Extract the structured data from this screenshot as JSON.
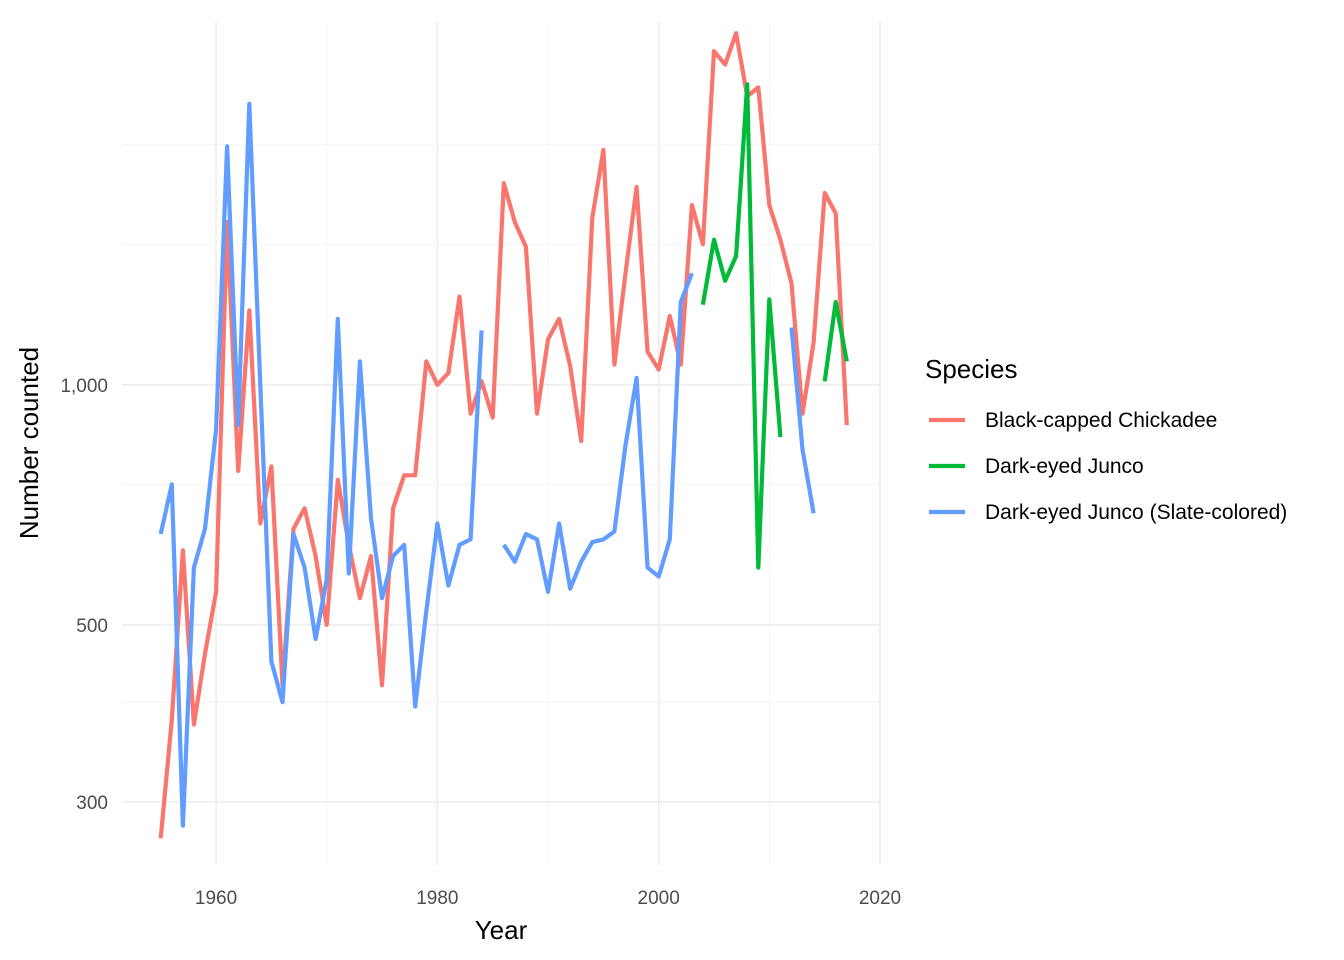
{
  "chart_data": {
    "type": "line",
    "xlabel": "Year",
    "ylabel": "Number counted",
    "xlim": [
      1951.5,
      2020
    ],
    "ylim": [
      250,
      2850
    ],
    "y_scale": "log",
    "x_ticks": [
      1960,
      1980,
      2000,
      2020
    ],
    "x_tick_labels": [
      "1960",
      "1980",
      "2000",
      "2020"
    ],
    "y_ticks": [
      300,
      500,
      1000
    ],
    "y_tick_labels": [
      "300",
      "500",
      "1,000"
    ],
    "y_minor": [
      400,
      750,
      1500,
      2000
    ],
    "grid": true,
    "legend": {
      "title": "Species",
      "position": "right"
    },
    "series": [
      {
        "name": "Black-capped Chickadee",
        "color": "#F8766D",
        "points": [
          [
            1955,
            270
          ],
          [
            1956,
            380
          ],
          [
            1957,
            620
          ],
          [
            1958,
            375
          ],
          [
            1959,
            460
          ],
          [
            1960,
            550
          ],
          [
            1961,
            1600
          ],
          [
            1962,
            780
          ],
          [
            1963,
            1240
          ],
          [
            1964,
            670
          ],
          [
            1965,
            790
          ],
          [
            1966,
            420
          ],
          [
            1967,
            660
          ],
          [
            1968,
            700
          ],
          [
            1969,
            610
          ],
          [
            1970,
            500
          ],
          [
            1971,
            760
          ],
          [
            1972,
            630
          ],
          [
            1973,
            540
          ],
          [
            1974,
            610
          ],
          [
            1975,
            420
          ],
          [
            1976,
            700
          ],
          [
            1977,
            770
          ],
          [
            1978,
            770
          ],
          [
            1979,
            1070
          ],
          [
            1980,
            1000
          ],
          [
            1981,
            1035
          ],
          [
            1982,
            1290
          ],
          [
            1983,
            920
          ],
          [
            1984,
            1010
          ],
          [
            1985,
            910
          ],
          [
            1986,
            1790
          ],
          [
            1987,
            1600
          ],
          [
            1988,
            1490
          ],
          [
            1989,
            920
          ],
          [
            1990,
            1140
          ],
          [
            1991,
            1210
          ],
          [
            1992,
            1055
          ],
          [
            1993,
            850
          ],
          [
            1994,
            1620
          ],
          [
            1995,
            1970
          ],
          [
            1996,
            1060
          ],
          [
            1997,
            1380
          ],
          [
            1998,
            1770
          ],
          [
            1999,
            1100
          ],
          [
            2000,
            1045
          ],
          [
            2001,
            1220
          ],
          [
            2002,
            1060
          ],
          [
            2003,
            1680
          ],
          [
            2004,
            1500
          ],
          [
            2005,
            2620
          ],
          [
            2006,
            2520
          ],
          [
            2007,
            2760
          ],
          [
            2008,
            2300
          ],
          [
            2009,
            2360
          ],
          [
            2010,
            1680
          ],
          [
            2011,
            1520
          ],
          [
            2012,
            1340
          ],
          [
            2013,
            920
          ],
          [
            2014,
            1130
          ],
          [
            2015,
            1740
          ],
          [
            2016,
            1640
          ],
          [
            2017,
            890
          ]
        ]
      },
      {
        "name": "Dark-eyed Junco",
        "color": "#00BA38",
        "points": [
          [
            2004,
            1260
          ],
          [
            2005,
            1520
          ],
          [
            2006,
            1350
          ],
          [
            2007,
            1450
          ],
          [
            2008,
            2380
          ],
          [
            2009,
            590
          ],
          [
            2010,
            1280
          ],
          [
            2011,
            860
          ],
          null,
          [
            2015,
            1010
          ],
          [
            2016,
            1270
          ],
          [
            2017,
            1070
          ]
        ]
      },
      {
        "name": "Dark-eyed Junco (Slate-colored)",
        "color": "#619CFF",
        "points": [
          [
            1955,
            650
          ],
          [
            1956,
            750
          ],
          [
            1957,
            280
          ],
          [
            1958,
            590
          ],
          [
            1959,
            660
          ],
          [
            1960,
            880
          ],
          [
            1961,
            1990
          ],
          [
            1962,
            890
          ],
          [
            1963,
            2250
          ],
          [
            1964,
            1000
          ],
          [
            1965,
            450
          ],
          [
            1966,
            400
          ],
          [
            1967,
            650
          ],
          [
            1968,
            590
          ],
          [
            1969,
            480
          ],
          [
            1970,
            570
          ],
          [
            1971,
            1210
          ],
          [
            1972,
            580
          ],
          [
            1973,
            1070
          ],
          [
            1974,
            680
          ],
          [
            1975,
            540
          ],
          [
            1976,
            610
          ],
          [
            1977,
            630
          ],
          [
            1978,
            395
          ],
          [
            1979,
            520
          ],
          [
            1980,
            670
          ],
          [
            1981,
            560
          ],
          [
            1982,
            630
          ],
          [
            1983,
            640
          ],
          [
            1984,
            1170
          ],
          null,
          [
            1986,
            630
          ],
          [
            1987,
            600
          ],
          [
            1988,
            650
          ],
          [
            1989,
            640
          ],
          [
            1990,
            550
          ],
          [
            1991,
            670
          ],
          [
            1992,
            555
          ],
          [
            1993,
            600
          ],
          [
            1994,
            635
          ],
          [
            1995,
            640
          ],
          [
            1996,
            655
          ],
          [
            1997,
            840
          ],
          [
            1998,
            1020
          ],
          [
            1999,
            590
          ],
          [
            2000,
            575
          ],
          [
            2001,
            640
          ],
          [
            2002,
            1270
          ],
          [
            2003,
            1380
          ],
          null,
          [
            2012,
            1180
          ],
          [
            2013,
            830
          ],
          [
            2014,
            690
          ]
        ]
      }
    ]
  }
}
